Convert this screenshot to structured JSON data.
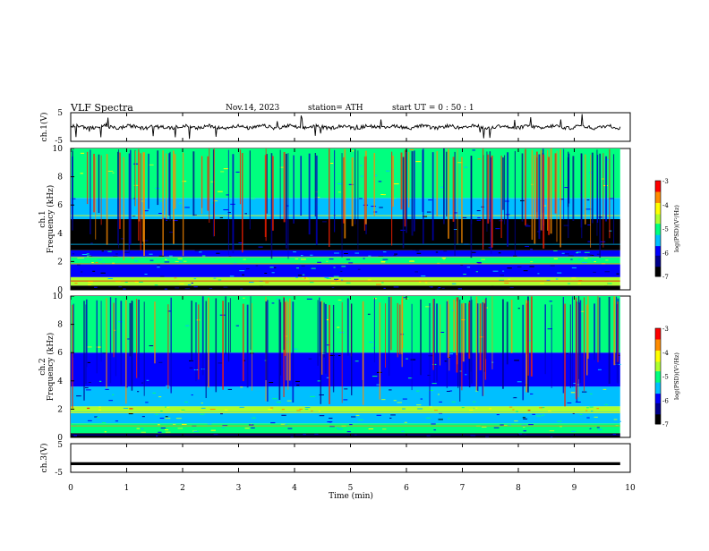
{
  "header": {
    "title": "VLF  Spectra",
    "date": "Nov.14, 2023",
    "station": "station= ATH",
    "start_time": "start  UT  =    0  : 50 : 1"
  },
  "chart_data": [
    {
      "type": "line",
      "name": "ch1-waveform",
      "ylabel": "ch.1(V)",
      "ylim": [
        -5,
        5
      ],
      "yticks": [
        "5",
        "-5"
      ],
      "xlim": [
        0,
        10
      ],
      "x_end": 9.82,
      "baseline": 0,
      "description_values": {
        "typical_amplitude": 1.2,
        "max_spike": 4.5
      }
    },
    {
      "type": "heatmap",
      "name": "ch1-spectrogram",
      "ylabel": "ch.1\nFrequency (kHz)",
      "ylabel_lines": [
        "ch.1",
        "Frequency (kHz)"
      ],
      "xlim": [
        0,
        10
      ],
      "x_end": 9.82,
      "ylim": [
        0,
        10
      ],
      "yticks": [
        "0",
        "2",
        "4",
        "6",
        "8",
        "10"
      ],
      "bands": [
        {
          "from": 0,
          "to": 0.3,
          "level": -7
        },
        {
          "from": 0.3,
          "to": 0.9,
          "level": -4.7
        },
        {
          "from": 0.9,
          "to": 1.8,
          "level": -6.1
        },
        {
          "from": 1.8,
          "to": 2.3,
          "level": -4.9
        },
        {
          "from": 2.3,
          "to": 2.8,
          "level": -5.9
        },
        {
          "from": 2.8,
          "to": 5.0,
          "level": -6.6
        },
        {
          "from": 5.0,
          "to": 6.5,
          "level": -5.6
        },
        {
          "from": 6.5,
          "to": 10,
          "level": -4.8
        }
      ]
    },
    {
      "type": "heatmap",
      "name": "ch2-spectrogram",
      "ylabel_lines": [
        "ch.2",
        "Frequency (kHz)"
      ],
      "xlim": [
        0,
        10
      ],
      "x_end": 9.82,
      "ylim": [
        0,
        10
      ],
      "yticks": [
        "0",
        "2",
        "4",
        "6",
        "8",
        "10"
      ],
      "bands": [
        {
          "from": 0,
          "to": 0.3,
          "level": -7
        },
        {
          "from": 0.3,
          "to": 1.0,
          "level": -5.0
        },
        {
          "from": 1.0,
          "to": 1.8,
          "level": -5.6
        },
        {
          "from": 1.8,
          "to": 2.2,
          "level": -4.4
        },
        {
          "from": 2.2,
          "to": 3.6,
          "level": -5.4
        },
        {
          "from": 3.6,
          "to": 6.0,
          "level": -6.0
        },
        {
          "from": 6.0,
          "to": 10,
          "level": -5.1
        }
      ]
    },
    {
      "type": "line",
      "name": "ch3-waveform",
      "ylabel": "ch.3(V)",
      "ylim": [
        -5,
        5
      ],
      "yticks": [
        "5",
        "-5"
      ],
      "xlim": [
        0,
        10
      ],
      "x_end": 9.82,
      "baseline": -2
    }
  ],
  "x_axis": {
    "label": "Time  (min)",
    "ticks": [
      "0",
      "1",
      "2",
      "3",
      "4",
      "5",
      "6",
      "7",
      "8",
      "9",
      "10"
    ]
  },
  "colorbar": {
    "label": "log(PSD)(V²/Hz)",
    "ticks": [
      "-3",
      "-4",
      "-5",
      "-6",
      "-7"
    ],
    "range": [
      -7,
      -3
    ],
    "colors": [
      "#000000",
      "#00008b",
      "#0000ff",
      "#00bfff",
      "#00ff7f",
      "#adff2f",
      "#ffff00",
      "#ff8c00",
      "#ff0000",
      "#ffffff"
    ]
  }
}
